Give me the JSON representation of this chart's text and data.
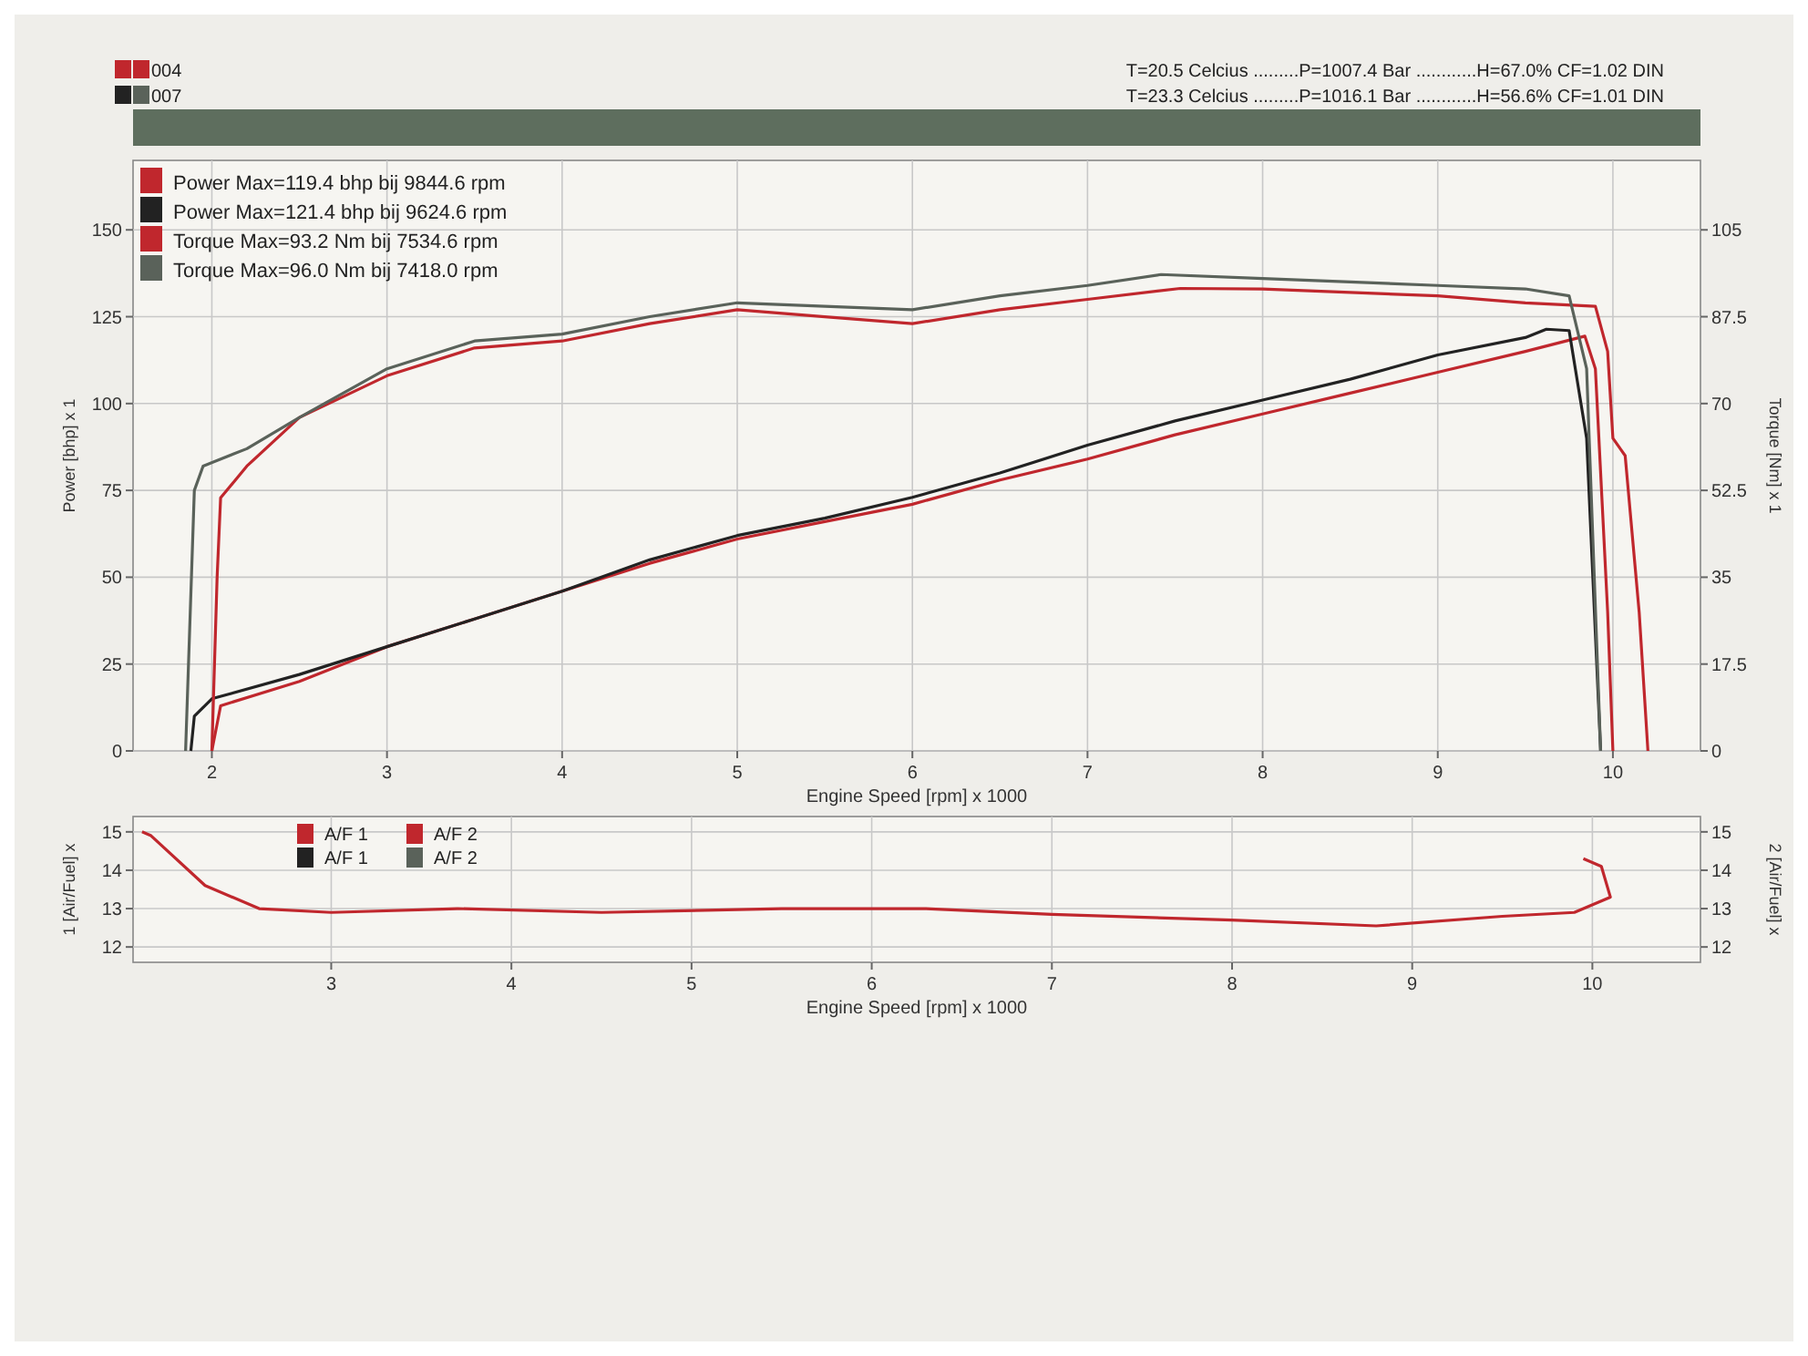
{
  "chart_data": [
    {
      "type": "line",
      "xlabel": "Engine Speed [rpm] x 1000",
      "ylabel": "Power [bhp] x 1",
      "y2label": "Torque [Nm] x 1",
      "annotations": [
        "004",
        "007",
        "T=20.5 Celcius .........P=1007.4 Bar ............H=67.0% CF=1.02 DIN",
        "T=23.3 Celcius .........P=1016.1 Bar ............H=56.6% CF=1.01 DIN"
      ],
      "xlim": [
        1.55,
        10.5
      ],
      "xticks": [
        2,
        3,
        4,
        5,
        6,
        7,
        8,
        9,
        10
      ],
      "ylim": [
        0,
        170
      ],
      "yticks": [
        0,
        25,
        50,
        75,
        100,
        125,
        150
      ],
      "y2lim": [
        0,
        119
      ],
      "y2ticks": [
        0,
        17.5,
        35,
        52.5,
        70,
        87.5,
        105
      ],
      "grid": true,
      "legend": "top left",
      "marker": "none",
      "line_style": "solid",
      "series": [
        {
          "name": "Power  Max=119.4 bhp bij 9844.6 rpm",
          "color": "#c0272d",
          "x": [
            2.0,
            2.05,
            2.5,
            3.0,
            3.5,
            4.0,
            4.5,
            5.0,
            5.5,
            6.0,
            6.5,
            7.0,
            7.5,
            8.0,
            8.5,
            9.0,
            9.5,
            9.84,
            9.9,
            9.97,
            10.0
          ],
          "values": [
            0,
            13,
            20,
            30,
            38,
            46,
            54,
            61,
            66,
            71,
            78,
            84,
            91,
            97,
            103,
            109,
            115,
            119.4,
            110,
            40,
            0
          ]
        },
        {
          "name": "Power  Max=121.4 bhp bij 9624.6 rpm",
          "color": "#222222",
          "x": [
            1.88,
            1.9,
            2.0,
            2.5,
            3.0,
            3.5,
            4.0,
            4.5,
            5.0,
            5.5,
            6.0,
            6.5,
            7.0,
            7.5,
            8.0,
            8.5,
            9.0,
            9.5,
            9.62,
            9.75,
            9.85,
            9.93
          ],
          "values": [
            0,
            10,
            15,
            22,
            30,
            38,
            46,
            55,
            62,
            67,
            73,
            80,
            88,
            95,
            101,
            107,
            114,
            119,
            121.4,
            121,
            90,
            0
          ]
        },
        {
          "name": "Torque  Max=93.2 Nm bij 7534.6 rpm",
          "color": "#c0272d",
          "axis": "y2",
          "x": [
            2.0,
            2.03,
            2.05,
            2.2,
            2.5,
            3.0,
            3.5,
            4.0,
            4.5,
            5.0,
            5.5,
            6.0,
            6.5,
            7.0,
            7.53,
            8.0,
            8.5,
            9.0,
            9.5,
            9.9,
            9.97,
            10.0,
            10.07,
            10.15,
            10.2
          ],
          "values": [
            0,
            35,
            51,
            57.4,
            67.2,
            75.6,
            81.2,
            82.6,
            86.1,
            88.9,
            87.5,
            86.1,
            88.9,
            91,
            93.2,
            93.1,
            92.4,
            91.7,
            90.3,
            89.6,
            80.5,
            63,
            59.5,
            28,
            0
          ]
        },
        {
          "name": "Torque  Max=96.0 Nm bij 7418.0 rpm",
          "color": "#5a625a",
          "axis": "y2",
          "x": [
            1.85,
            1.9,
            1.95,
            2.2,
            2.5,
            3.0,
            3.5,
            4.0,
            4.5,
            5.0,
            5.5,
            6.0,
            6.5,
            7.0,
            7.42,
            8.0,
            8.5,
            9.0,
            9.5,
            9.75,
            9.85,
            9.93
          ],
          "values": [
            0,
            52.5,
            57.4,
            60.9,
            67.2,
            77,
            82.6,
            84,
            87.5,
            90.3,
            89.6,
            88.9,
            91.7,
            93.8,
            96,
            95.2,
            94.5,
            93.8,
            93.1,
            91.7,
            77,
            0
          ]
        }
      ]
    },
    {
      "type": "line",
      "xlabel": "Engine Speed [rpm] x 1000",
      "ylabel": "1 [Air/Fuel] x",
      "y2label": "2 [Air/Fuel] x",
      "xlim": [
        1.9,
        10.6
      ],
      "xticks": [
        3,
        4,
        5,
        6,
        7,
        8,
        9,
        10
      ],
      "ylim": [
        11.6,
        15.4
      ],
      "yticks": [
        12,
        13,
        14,
        15
      ],
      "y2lim": [
        11.6,
        15.4
      ],
      "y2ticks": [
        12,
        13,
        14,
        15
      ],
      "grid": true,
      "legend": "top left",
      "marker": "none",
      "line_style": "solid",
      "series": [
        {
          "name": "A/F 1",
          "color": "#c0272d",
          "x": [
            1.95,
            2.0,
            2.3,
            2.6,
            3.0,
            3.7,
            4.5,
            5.5,
            6.3,
            7.0,
            8.0,
            8.8,
            9.5,
            9.9,
            10.1,
            10.05,
            9.95
          ],
          "values": [
            15,
            14.9,
            13.6,
            13.0,
            12.9,
            13.0,
            12.9,
            13.0,
            13.0,
            12.85,
            12.7,
            12.55,
            12.8,
            12.9,
            13.3,
            14.1,
            14.3
          ]
        },
        {
          "name": "A/F 1",
          "color": "#222222"
        },
        {
          "name": "A/F 2",
          "color": "#c0272d",
          "axis": "y2"
        },
        {
          "name": "A/F 2",
          "color": "#5a625a",
          "axis": "y2"
        }
      ]
    }
  ]
}
